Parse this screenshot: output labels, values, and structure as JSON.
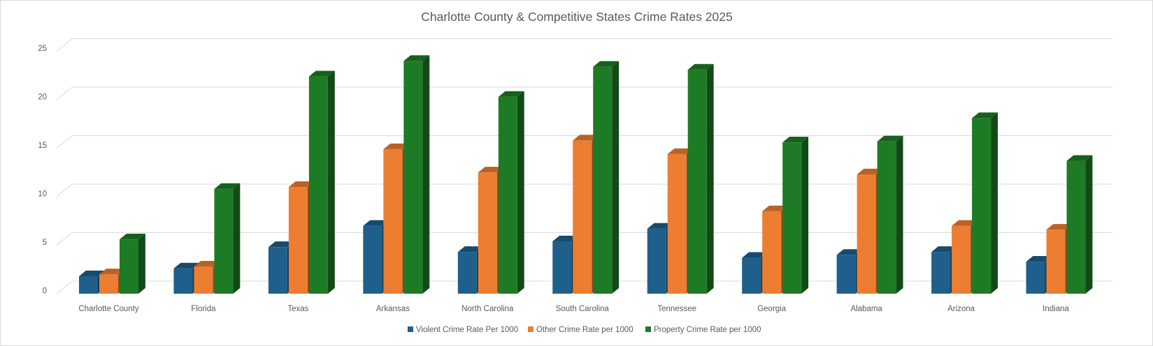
{
  "chart_data": {
    "type": "bar",
    "title": "Charlotte County & Competitive States Crime Rates 2025",
    "xlabel": "",
    "ylabel": "",
    "ylim": [
      0,
      25
    ],
    "yticks": [
      0,
      5,
      10,
      15,
      20,
      25
    ],
    "grid": true,
    "legend_position": "bottom",
    "categories": [
      "Charlotte County",
      "Florida",
      "Texas",
      "Arkansas",
      "North Carolina",
      "South Carolina",
      "Tennessee",
      "Georgia",
      "Alabama",
      "Arizona",
      "Indiana"
    ],
    "series": [
      {
        "name": "Violent Crime Rate Per 1000",
        "color": "#1F5F8B",
        "values": [
          1.8,
          2.6,
          4.8,
          7.0,
          4.3,
          5.4,
          6.7,
          3.7,
          4.0,
          4.3,
          3.3
        ]
      },
      {
        "name": "Other Crime Rate per 1000",
        "color": "#ED7D31",
        "values": [
          2.0,
          2.8,
          11.0,
          14.9,
          12.5,
          15.8,
          14.4,
          8.5,
          12.3,
          7.0,
          6.6
        ]
      },
      {
        "name": "Property Crime Rate per 1000",
        "color": "#1E7B25",
        "values": [
          5.6,
          10.8,
          22.4,
          24.0,
          20.3,
          23.4,
          23.1,
          15.6,
          15.7,
          18.1,
          13.7
        ]
      }
    ]
  }
}
